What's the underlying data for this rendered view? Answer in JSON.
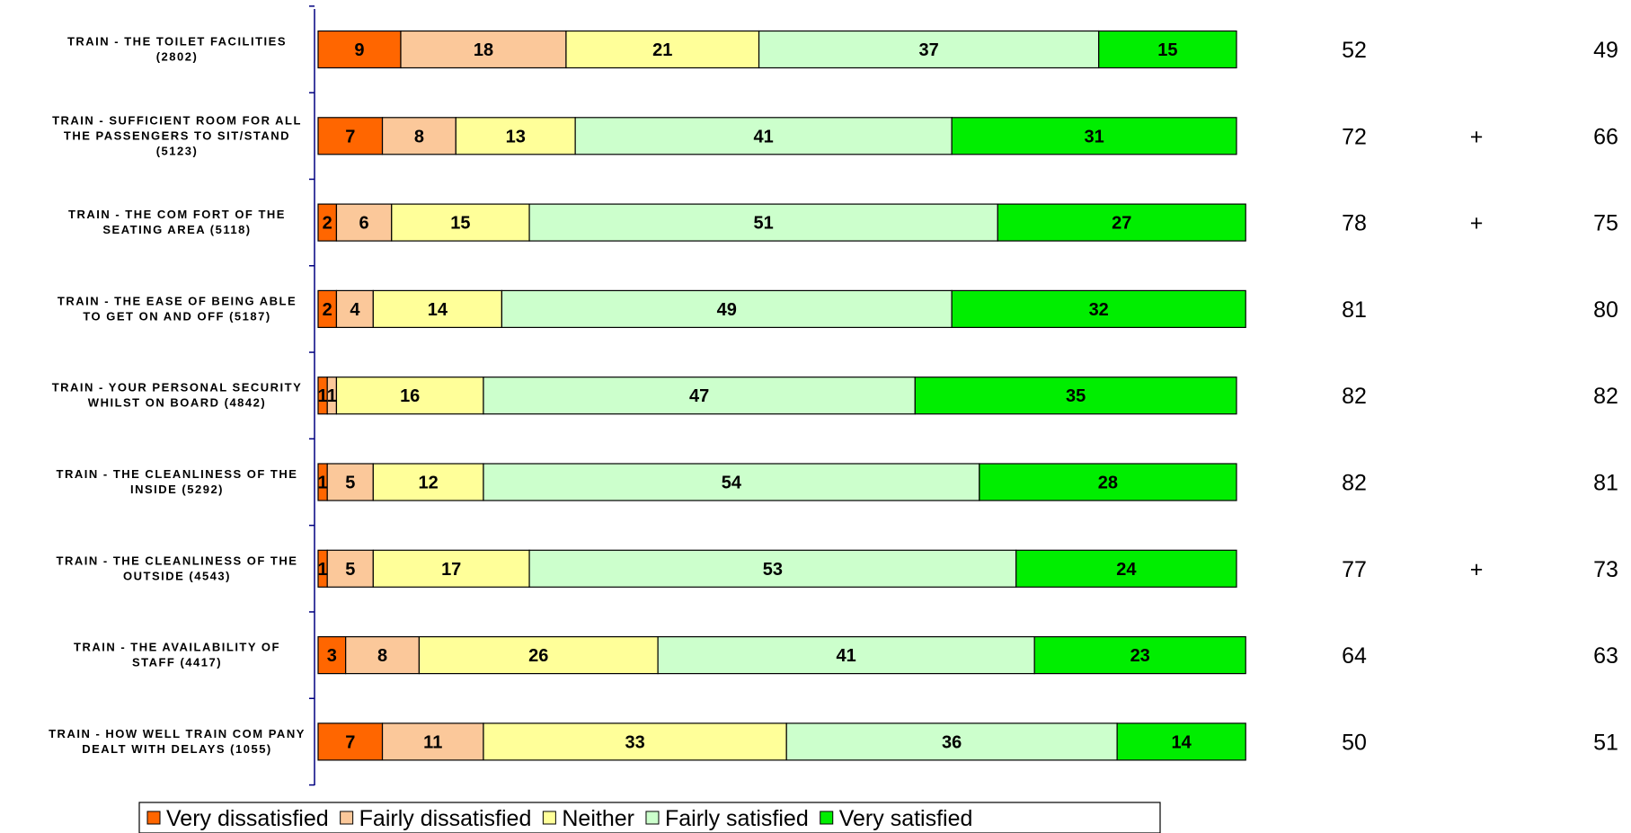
{
  "chart_data": {
    "type": "bar",
    "orientation": "horizontal",
    "stacked": true,
    "categories": [
      [
        "TRAIN - THE TOILET FACILITIES",
        "(2802)"
      ],
      [
        "TRAIN - SUFFICIENT ROOM FOR ALL",
        "THE PASSENGERS TO SIT/STAND",
        "(5123)"
      ],
      [
        "TRAIN - THE COM FORT OF THE",
        "SEATING AREA (5118)"
      ],
      [
        "TRAIN - THE EASE OF BEING ABLE",
        "TO GET ON AND OFF (5187)"
      ],
      [
        "TRAIN - YOUR PERSONAL SECURITY",
        "WHILST ON BOARD (4842)"
      ],
      [
        "TRAIN - THE CLEANLINESS OF THE",
        "INSIDE (5292)"
      ],
      [
        "TRAIN - THE CLEANLINESS OF THE",
        "OUTSIDE (4543)"
      ],
      [
        "TRAIN - THE AVAILABILITY OF",
        "STAFF (4417)"
      ],
      [
        "TRAIN - HOW WELL TRAIN COM PANY",
        "DEALT WITH DELAYS (1055)"
      ]
    ],
    "series": [
      {
        "name": "Very dissatisfied",
        "color": "#ff6600",
        "values": [
          9,
          7,
          2,
          2,
          1,
          1,
          1,
          3,
          7
        ]
      },
      {
        "name": "Fairly dissatisfied",
        "color": "#fbc89a",
        "values": [
          18,
          8,
          6,
          4,
          1,
          5,
          5,
          8,
          11
        ]
      },
      {
        "name": "Neither",
        "color": "#ffff99",
        "values": [
          21,
          13,
          15,
          14,
          16,
          12,
          17,
          26,
          33
        ]
      },
      {
        "name": "Fairly satisfied",
        "color": "#ccffcc",
        "values": [
          37,
          41,
          51,
          49,
          47,
          54,
          53,
          41,
          36
        ]
      },
      {
        "name": "Very satisfied",
        "color": "#00ee00",
        "values": [
          15,
          31,
          27,
          32,
          35,
          28,
          24,
          23,
          14
        ]
      }
    ],
    "xlim": [
      0,
      100
    ],
    "side_columns": {
      "current": [
        "52",
        "72",
        "78",
        "81",
        "82",
        "82",
        "77",
        "64",
        "50"
      ],
      "change": [
        "",
        "+",
        "+",
        "",
        "",
        "",
        "+",
        "",
        ""
      ],
      "previous": [
        "49",
        "66",
        "75",
        "80",
        "82",
        "81",
        "73",
        "63",
        "51"
      ]
    },
    "legend_position": "bottom",
    "grid": false
  }
}
